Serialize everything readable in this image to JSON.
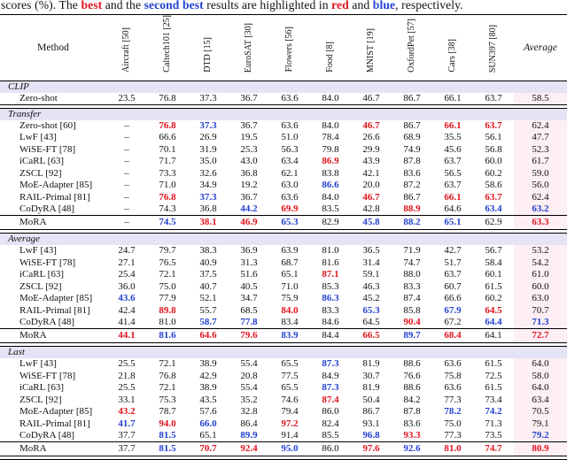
{
  "caption": {
    "segments": [
      {
        "text": "scores (%). The ",
        "color": null
      },
      {
        "text": "best",
        "color": "best"
      },
      {
        "text": " and the ",
        "color": null
      },
      {
        "text": "second best",
        "color": "second"
      },
      {
        "text": " results are highlighted in ",
        "color": null
      },
      {
        "text": "red",
        "color": "best"
      },
      {
        "text": " and ",
        "color": null
      },
      {
        "text": "blue",
        "color": "second"
      },
      {
        "text": ", respectively.",
        "color": null
      }
    ]
  },
  "colors": {
    "best": "#e1131d",
    "second": "#2341d0",
    "band": "#e4e4f6",
    "avg_col": "#fdeff4"
  },
  "table": {
    "method_header": "Method",
    "dataset_headers": [
      "Aircraft [50]",
      "Caltech101 [25]",
      "DTD [15]",
      "EuroSAT [30]",
      "Flowers [56]",
      "Food [8]",
      "MNIST [19]",
      "OxfordPet [57]",
      "Cars [38]",
      "SUN397 [80]"
    ],
    "average_header": "Average",
    "sections": [
      {
        "label": "CLIP",
        "rows": [
          {
            "method": "Zero-shot",
            "values": [
              "23.5",
              "76.8",
              "37.3",
              "36.7",
              "63.6",
              "84.0",
              "46.7",
              "86.7",
              "66.1",
              "63.7",
              "58.5"
            ],
            "red": [],
            "blue": []
          }
        ]
      },
      {
        "label": "Transfer",
        "rows": [
          {
            "method": "Zero-shot [60]",
            "values": [
              "–",
              "76.8",
              "37.3",
              "36.7",
              "63.6",
              "84.0",
              "46.7",
              "86.7",
              "66.1",
              "63.7",
              "62.4"
            ],
            "red": [
              1,
              6,
              8,
              9
            ],
            "blue": [
              2
            ]
          },
          {
            "method": "LwF [43]",
            "values": [
              "–",
              "66.6",
              "26.9",
              "19.5",
              "51.0",
              "78.4",
              "26.6",
              "68.9",
              "35.5",
              "56.1",
              "47.7"
            ],
            "red": [],
            "blue": []
          },
          {
            "method": "WiSE-FT [78]",
            "values": [
              "–",
              "70.1",
              "31.9",
              "25.3",
              "56.3",
              "79.8",
              "29.9",
              "74.9",
              "45.6",
              "56.8",
              "52.3"
            ],
            "red": [],
            "blue": []
          },
          {
            "method": "iCaRL [63]",
            "values": [
              "–",
              "71.7",
              "35.0",
              "43.0",
              "63.4",
              "86.9",
              "43.9",
              "87.8",
              "63.7",
              "60.0",
              "61.7"
            ],
            "red": [
              5
            ],
            "blue": []
          },
          {
            "method": "ZSCL [92]",
            "values": [
              "–",
              "73.3",
              "32.6",
              "36.8",
              "62.1",
              "83.8",
              "42.1",
              "83.6",
              "56.5",
              "60.2",
              "59.0"
            ],
            "red": [],
            "blue": []
          },
          {
            "method": "MoE-Adapter [85]",
            "values": [
              "–",
              "71.0",
              "34.9",
              "19.2",
              "63.0",
              "86.6",
              "20.0",
              "87.2",
              "63.7",
              "58.6",
              "56.0"
            ],
            "red": [],
            "blue": [
              5
            ]
          },
          {
            "method": "RAIL-Primal [81]",
            "values": [
              "–",
              "76.8",
              "37.3",
              "36.7",
              "63.6",
              "84.0",
              "46.7",
              "86.7",
              "66.1",
              "63.7",
              "62.4"
            ],
            "red": [
              1,
              6,
              8,
              9
            ],
            "blue": [
              2
            ]
          },
          {
            "method": "CoDyRA [48]",
            "values": [
              "–",
              "74.3",
              "36.8",
              "44.2",
              "69.9",
              "83.5",
              "42.8",
              "88.9",
              "64.6",
              "63.4",
              "63.2"
            ],
            "red": [
              4,
              7
            ],
            "blue": [
              3,
              9,
              10
            ]
          }
        ],
        "mora": {
          "method": "MoRA",
          "values": [
            "–",
            "74.5",
            "38.1",
            "46.9",
            "65.3",
            "82.9",
            "45.8",
            "88.2",
            "65.1",
            "62.9",
            "63.3"
          ],
          "red": [
            2,
            3,
            10
          ],
          "blue": [
            1,
            4,
            6,
            7,
            8
          ]
        }
      },
      {
        "label": "Average",
        "rows": [
          {
            "method": "LwF [43]",
            "values": [
              "24.7",
              "79.7",
              "38.3",
              "36.9",
              "63.9",
              "81.0",
              "36.5",
              "71.9",
              "42.7",
              "56.7",
              "53.2"
            ],
            "red": [],
            "blue": []
          },
          {
            "method": "WiSE-FT [78]",
            "values": [
              "27.1",
              "76.5",
              "40.9",
              "31.3",
              "68.7",
              "81.6",
              "31.4",
              "74.7",
              "51.7",
              "58.4",
              "54.2"
            ],
            "red": [],
            "blue": []
          },
          {
            "method": "iCaRL [63]",
            "values": [
              "25.4",
              "72.1",
              "37.5",
              "51.6",
              "65.1",
              "87.1",
              "59.1",
              "88.0",
              "63.7",
              "60.1",
              "61.0"
            ],
            "red": [
              5
            ],
            "blue": []
          },
          {
            "method": "ZSCL [92]",
            "values": [
              "36.0",
              "75.0",
              "40.7",
              "40.5",
              "71.0",
              "85.3",
              "46.3",
              "83.3",
              "60.7",
              "61.5",
              "60.0"
            ],
            "red": [],
            "blue": []
          },
          {
            "method": "MoE-Adapter [85]",
            "values": [
              "43.6",
              "77.9",
              "52.1",
              "34.7",
              "75.9",
              "86.3",
              "45.2",
              "87.4",
              "66.6",
              "60.2",
              "63.0"
            ],
            "red": [],
            "blue": [
              0,
              5
            ]
          },
          {
            "method": "RAIL-Primal [81]",
            "values": [
              "42.4",
              "89.8",
              "55.7",
              "68.5",
              "84.0",
              "83.3",
              "65.3",
              "85.8",
              "67.9",
              "64.5",
              "70.7"
            ],
            "red": [
              1,
              4,
              9
            ],
            "blue": [
              6,
              8
            ]
          },
          {
            "method": "CoDyRA [48]",
            "values": [
              "41.4",
              "81.0",
              "58.7",
              "77.8",
              "83.4",
              "84.6",
              "64.5",
              "90.4",
              "67.2",
              "64.4",
              "71.3"
            ],
            "red": [
              7
            ],
            "blue": [
              2,
              3,
              9,
              10
            ]
          }
        ],
        "mora": {
          "method": "MoRA",
          "values": [
            "44.1",
            "81.6",
            "64.6",
            "79.6",
            "83.9",
            "84.4",
            "66.5",
            "89.7",
            "68.4",
            "64.1",
            "72.7"
          ],
          "red": [
            0,
            2,
            3,
            6,
            8,
            10
          ],
          "blue": [
            1,
            4,
            7
          ]
        }
      },
      {
        "label": "Last",
        "rows": [
          {
            "method": "LwF [43]",
            "values": [
              "25.5",
              "72.1",
              "38.9",
              "55.4",
              "65.5",
              "87.3",
              "81.9",
              "88.6",
              "63.6",
              "61.5",
              "64.0"
            ],
            "red": [],
            "blue": [
              5
            ]
          },
          {
            "method": "WiSE-FT [78]",
            "values": [
              "21.8",
              "76.8",
              "42.9",
              "20.8",
              "77.5",
              "84.9",
              "30.7",
              "76.6",
              "75.8",
              "72.5",
              "58.0"
            ],
            "red": [],
            "blue": []
          },
          {
            "method": "iCaRL [63]",
            "values": [
              "25.5",
              "72.1",
              "38.9",
              "55.4",
              "65.5",
              "87.3",
              "81.9",
              "88.6",
              "63.6",
              "61.5",
              "64.0"
            ],
            "red": [],
            "blue": [
              5
            ]
          },
          {
            "method": "ZSCL [92]",
            "values": [
              "33.1",
              "75.3",
              "43.5",
              "35.2",
              "74.6",
              "87.4",
              "50.4",
              "84.2",
              "77.3",
              "73.4",
              "63.4"
            ],
            "red": [
              5
            ],
            "blue": []
          },
          {
            "method": "MoE-Adapter [85]",
            "values": [
              "43.2",
              "78.7",
              "57.6",
              "32.8",
              "79.4",
              "86.0",
              "86.7",
              "87.8",
              "78.2",
              "74.2",
              "70.5"
            ],
            "red": [
              0
            ],
            "blue": [
              8,
              9
            ]
          },
          {
            "method": "RAIL-Primal [81]",
            "values": [
              "41.7",
              "94.0",
              "66.0",
              "86.4",
              "97.2",
              "82.4",
              "93.1",
              "83.6",
              "75.0",
              "71.3",
              "79.1"
            ],
            "red": [
              1,
              4
            ],
            "blue": [
              0,
              2
            ]
          },
          {
            "method": "CoDyRA [48]",
            "values": [
              "37.7",
              "81.5",
              "65.1",
              "89.9",
              "91.4",
              "85.5",
              "96.8",
              "93.3",
              "77.3",
              "73.5",
              "79.2"
            ],
            "red": [
              7
            ],
            "blue": [
              1,
              3,
              6,
              10
            ]
          }
        ],
        "mora": {
          "method": "MoRA",
          "values": [
            "37.7",
            "81.5",
            "70.7",
            "92.4",
            "95.0",
            "86.0",
            "97.6",
            "92.6",
            "81.0",
            "74.7",
            "80.9"
          ],
          "red": [
            2,
            3,
            6,
            8,
            9,
            10
          ],
          "blue": [
            1,
            4,
            7
          ]
        }
      }
    ]
  }
}
